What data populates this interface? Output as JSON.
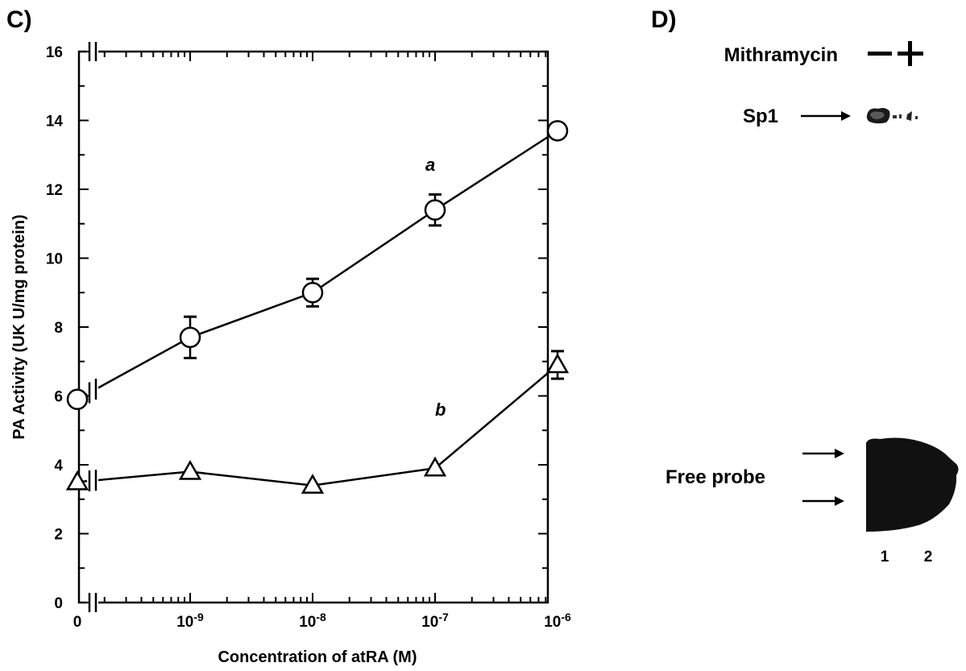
{
  "panel_c": {
    "letter": "C)"
  },
  "panel_d": {
    "letter": "D)",
    "treatment_label": "Mithramycin",
    "lanes": [
      {
        "sign": "−",
        "number": "1"
      },
      {
        "sign": "+",
        "number": "2"
      }
    ],
    "band_label": "Sp1",
    "free_probe_label": "Free probe"
  },
  "chart_data": {
    "type": "line",
    "title": "",
    "xlabel": "Concentration of atRA (M)",
    "ylabel": "PA Activity (UK U/mg protein)",
    "x_scale": "log (axis broken after 0)",
    "x": [
      0,
      1e-09,
      1e-08,
      1e-07,
      1e-06
    ],
    "x_tick_labels": [
      {
        "base": "0",
        "exp": ""
      },
      {
        "base": "10",
        "exp": "-9"
      },
      {
        "base": "10",
        "exp": "-8"
      },
      {
        "base": "10",
        "exp": "-7"
      },
      {
        "base": "10",
        "exp": "-6"
      }
    ],
    "ylim": [
      0,
      16
    ],
    "y_ticks": [
      "0",
      "2",
      "4",
      "6",
      "8",
      "10",
      "12",
      "14",
      "16"
    ],
    "grid": false,
    "series": [
      {
        "name": "a",
        "marker": "circle",
        "values": [
          5.9,
          7.7,
          9.0,
          11.4,
          13.7
        ],
        "errors": [
          0,
          0.6,
          0.4,
          0.45,
          0.2
        ]
      },
      {
        "name": "b",
        "marker": "triangle",
        "values": [
          3.5,
          3.8,
          3.4,
          3.9,
          6.9
        ],
        "errors": [
          0,
          0,
          0,
          0,
          0.4
        ]
      }
    ]
  }
}
